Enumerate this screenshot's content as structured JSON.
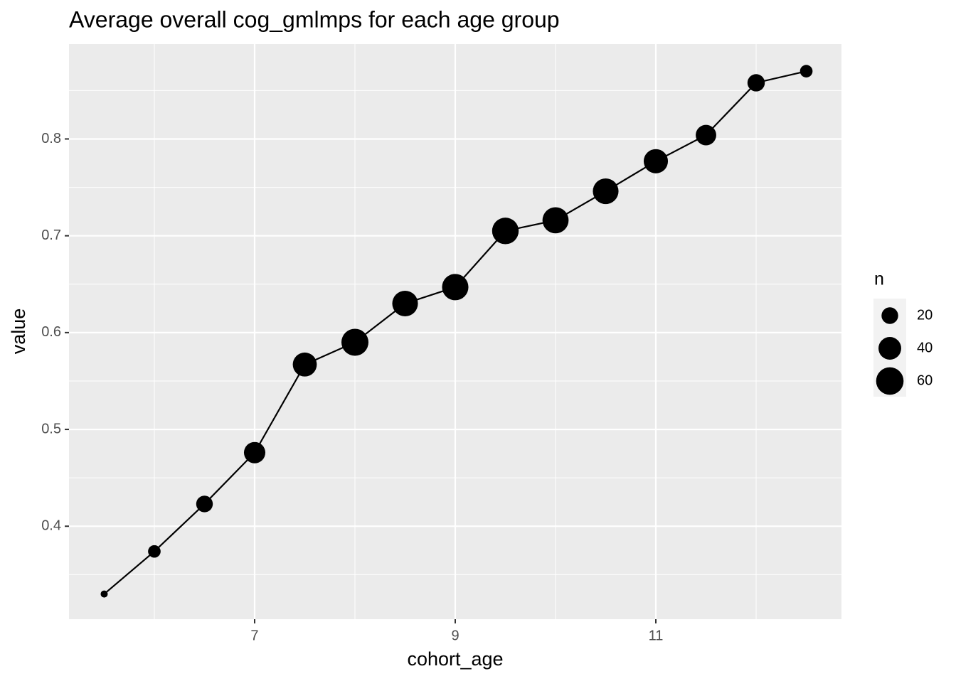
{
  "chart_data": {
    "type": "line-scatter",
    "title": "Average overall cog_gmlmps for each age group",
    "x_label": "cohort_age",
    "y_label": "value",
    "x": [
      5.5,
      6,
      6.5,
      7,
      7.5,
      8,
      8.5,
      9,
      9.5,
      10,
      10.5,
      11,
      11.5,
      12,
      12.5
    ],
    "series": [
      {
        "name": "value",
        "color": "#000000",
        "values": [
          0.33,
          0.374,
          0.423,
          0.476,
          0.567,
          0.59,
          0.63,
          0.647,
          0.705,
          0.716,
          0.746,
          0.777,
          0.804,
          0.858,
          0.87
        ],
        "sizes": [
          1,
          10,
          20,
          35,
          45,
          58,
          52,
          55,
          56,
          54,
          52,
          46,
          32,
          22,
          10
        ]
      }
    ],
    "xlim": [
      5.149,
      12.851
    ],
    "xticks": [
      7,
      9,
      11
    ],
    "ylim": [
      0.304,
      0.898
    ],
    "yticks": [
      0.4,
      0.5,
      0.6,
      0.7,
      0.8
    ],
    "grid": true,
    "size_legend": {
      "title": "n",
      "breaks": [
        20,
        40,
        60
      ]
    }
  }
}
